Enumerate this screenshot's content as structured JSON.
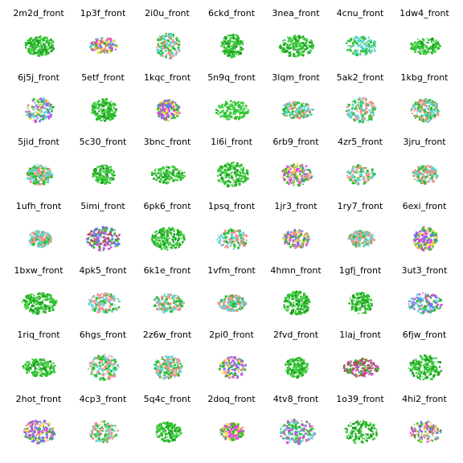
{
  "rows": [
    [
      {
        "label": "2m2d_front",
        "palette": [
          "#2bbf2b",
          "#1f9e1f",
          "#48d448"
        ]
      },
      {
        "label": "1p3f_front",
        "palette": [
          "#2bbf2b",
          "#d94ad9",
          "#ff8c8c",
          "#5dd6d6",
          "#ffd94a",
          "#7070ff",
          "#ff7a3d"
        ]
      },
      {
        "label": "2i0u_front",
        "palette": [
          "#2bbf2b",
          "#ff8c8c",
          "#5dd6d6"
        ]
      },
      {
        "label": "6ckd_front",
        "palette": [
          "#2bbf2b",
          "#1f9e1f",
          "#48d448"
        ]
      },
      {
        "label": "3nea_front",
        "palette": [
          "#2bbf2b",
          "#1f9e1f",
          "#48d448"
        ]
      },
      {
        "label": "4cnu_front",
        "palette": [
          "#2bbf2b",
          "#5dd6d6"
        ]
      },
      {
        "label": "1dw4_front",
        "palette": [
          "#2bbf2b",
          "#1f9e1f",
          "#48d448"
        ]
      }
    ],
    [
      {
        "label": "6j5j_front",
        "palette": [
          "#2bbf2b",
          "#d94ad9",
          "#7070ff",
          "#5dd6d6",
          "#ffd94a"
        ]
      },
      {
        "label": "5etf_front",
        "palette": [
          "#2bbf2b",
          "#1f9e1f",
          "#48d448"
        ]
      },
      {
        "label": "1kqc_front",
        "palette": [
          "#2bbf2b",
          "#d94ad9",
          "#ffd94a",
          "#7070ff"
        ]
      },
      {
        "label": "5n9q_front",
        "palette": [
          "#2bbf2b",
          "#48d448"
        ]
      },
      {
        "label": "3lqm_front",
        "palette": [
          "#2bbf2b",
          "#ff8c8c",
          "#5dd6d6"
        ]
      },
      {
        "label": "5ak2_front",
        "palette": [
          "#2bbf2b",
          "#5dd6d6",
          "#ff8c8c"
        ]
      },
      {
        "label": "1kbg_front",
        "palette": [
          "#2bbf2b",
          "#5dd6d6",
          "#ff8c8c"
        ]
      }
    ],
    [
      {
        "label": "5jid_front",
        "palette": [
          "#2bbf2b",
          "#ff8c8c",
          "#5dd6d6"
        ]
      },
      {
        "label": "5c30_front",
        "palette": [
          "#2bbf2b",
          "#1f9e1f",
          "#48d448"
        ]
      },
      {
        "label": "3bnc_front",
        "palette": [
          "#2bbf2b",
          "#1f9e1f",
          "#48d448"
        ]
      },
      {
        "label": "1i6i_front",
        "palette": [
          "#2bbf2b",
          "#1f9e1f",
          "#48d448"
        ]
      },
      {
        "label": "6rb9_front",
        "palette": [
          "#2bbf2b",
          "#d94ad9",
          "#ff8c8c",
          "#7070ff",
          "#ffd94a"
        ]
      },
      {
        "label": "4zr5_front",
        "palette": [
          "#2bbf2b",
          "#5dd6d6",
          "#ff8c8c"
        ]
      },
      {
        "label": "3jru_front",
        "palette": [
          "#2bbf2b",
          "#ff8c8c",
          "#5dd6d6"
        ]
      }
    ],
    [
      {
        "label": "1ufh_front",
        "palette": [
          "#2bbf2b",
          "#ff8c8c",
          "#5dd6d6"
        ]
      },
      {
        "label": "5imi_front",
        "palette": [
          "#2bbf2b",
          "#d94ad9",
          "#7070ff",
          "#b05050"
        ]
      },
      {
        "label": "6pk6_front",
        "palette": [
          "#2bbf2b",
          "#1f9e1f",
          "#48d448"
        ]
      },
      {
        "label": "1psq_front",
        "palette": [
          "#2bbf2b",
          "#5dd6d6",
          "#ff8c8c"
        ]
      },
      {
        "label": "1jr3_front",
        "palette": [
          "#2bbf2b",
          "#d94ad9",
          "#ffd94a",
          "#7070ff",
          "#ff8c8c"
        ]
      },
      {
        "label": "1ry7_front",
        "palette": [
          "#2bbf2b",
          "#ff8c8c",
          "#5dd6d6"
        ]
      },
      {
        "label": "6exi_front",
        "palette": [
          "#2bbf2b",
          "#d94ad9",
          "#ffd94a",
          "#7070ff"
        ]
      }
    ],
    [
      {
        "label": "1bxw_front",
        "palette": [
          "#2bbf2b",
          "#1f9e1f",
          "#48d448"
        ]
      },
      {
        "label": "4pk5_front",
        "palette": [
          "#2bbf2b",
          "#ff8c8c",
          "#5dd6d6"
        ]
      },
      {
        "label": "6k1e_front",
        "palette": [
          "#2bbf2b",
          "#5dd6d6",
          "#ff8c8c"
        ]
      },
      {
        "label": "1vfm_front",
        "palette": [
          "#2bbf2b",
          "#ff8c8c",
          "#5dd6d6"
        ]
      },
      {
        "label": "4hmn_front",
        "palette": [
          "#2bbf2b",
          "#1f9e1f",
          "#48d448"
        ]
      },
      {
        "label": "1gfj_front",
        "palette": [
          "#2bbf2b",
          "#1f9e1f",
          "#48d448"
        ]
      },
      {
        "label": "3ut3_front",
        "palette": [
          "#2bbf2b",
          "#d94ad9",
          "#7070ff",
          "#5dd6d6"
        ]
      }
    ],
    [
      {
        "label": "1riq_front",
        "palette": [
          "#2bbf2b",
          "#1f9e1f",
          "#48d448"
        ]
      },
      {
        "label": "6hgs_front",
        "palette": [
          "#2bbf2b",
          "#ff8c8c",
          "#5dd6d6"
        ]
      },
      {
        "label": "2z6w_front",
        "palette": [
          "#2bbf2b",
          "#ff8c8c",
          "#5dd6d6"
        ]
      },
      {
        "label": "2pi0_front",
        "palette": [
          "#2bbf2b",
          "#d94ad9",
          "#ffd94a",
          "#7070ff",
          "#ff8c8c"
        ]
      },
      {
        "label": "2fvd_front",
        "palette": [
          "#2bbf2b",
          "#1f9e1f",
          "#48d448"
        ]
      },
      {
        "label": "1laj_front",
        "palette": [
          "#2bbf2b",
          "#d94ad9",
          "#b05050"
        ]
      },
      {
        "label": "6fjw_front",
        "palette": [
          "#2bbf2b",
          "#1f9e1f",
          "#48d448"
        ]
      }
    ],
    [
      {
        "label": "2hot_front",
        "palette": [
          "#2bbf2b",
          "#d94ad9",
          "#7070ff",
          "#ffd94a"
        ]
      },
      {
        "label": "4cp3_front",
        "palette": [
          "#2bbf2b",
          "#5dd6d6",
          "#ff8c8c"
        ]
      },
      {
        "label": "5q4c_front",
        "palette": [
          "#2bbf2b",
          "#1f9e1f",
          "#48d448"
        ]
      },
      {
        "label": "2doq_front",
        "palette": [
          "#2bbf2b",
          "#d94ad9",
          "#ffd94a"
        ]
      },
      {
        "label": "4tv8_front",
        "palette": [
          "#2bbf2b",
          "#d94ad9",
          "#5dd6d6"
        ]
      },
      {
        "label": "1o39_front",
        "palette": [
          "#2bbf2b",
          "#1f9e1f",
          "#48d448"
        ]
      },
      {
        "label": "4hi2_front",
        "palette": [
          "#2bbf2b",
          "#d94ad9",
          "#ff8c8c",
          "#5dd6d6",
          "#ffd94a",
          "#7070ff",
          "#b05050"
        ]
      }
    ]
  ]
}
